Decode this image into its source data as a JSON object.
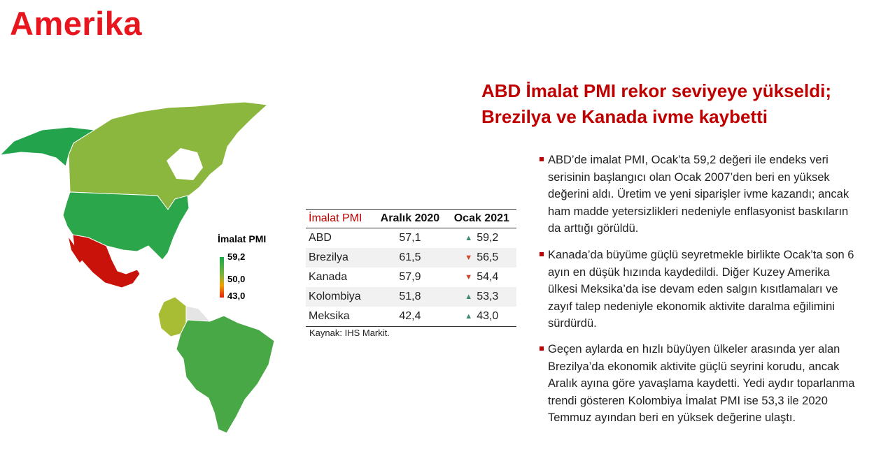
{
  "title": "Amerika",
  "headline": {
    "line1": "ABD İmalat PMI rekor seviyeye yükseldi;",
    "line2": "Brezilya ve Kanada ivme kaybetti"
  },
  "legend": {
    "title": "İmalat PMI",
    "max": "59,2",
    "mid": "50,0",
    "min": "43,0"
  },
  "map": {
    "canada_color": "#8cb73f",
    "alaska_color": "#22a34c",
    "usa_color": "#2ca64b",
    "mexico_color": "#c8120a",
    "colombia_color": "#a9bd34",
    "brazil_color": "#48a846"
  },
  "table": {
    "headers": [
      "İmalat PMI",
      "Aralık 2020",
      "Ocak 2021"
    ],
    "rows": [
      {
        "country": "ABD",
        "dec": "57,1",
        "jan": "59,2",
        "trend": "up"
      },
      {
        "country": "Brezilya",
        "dec": "61,5",
        "jan": "56,5",
        "trend": "down"
      },
      {
        "country": "Kanada",
        "dec": "57,9",
        "jan": "54,4",
        "trend": "down"
      },
      {
        "country": "Kolombiya",
        "dec": "51,8",
        "jan": "53,3",
        "trend": "up"
      },
      {
        "country": "Meksika",
        "dec": "42,4",
        "jan": "43,0",
        "trend": "up"
      }
    ],
    "source": "Kaynak: IHS Markit."
  },
  "bullets": [
    "ABD’de imalat PMI, Ocak’ta 59,2 değeri ile endeks veri serisinin başlangıcı olan Ocak 2007’den beri en yüksek değerini aldı. Üretim ve yeni siparişler ivme kazandı; ancak ham madde yetersizlikleri nedeniyle enflasyonist baskıların da arttığı görüldü.",
    "Kanada’da büyüme güçlü seyretmekle birlikte Ocak’ta son 6 ayın en düşük hızında kaydedildi. Diğer Kuzey Amerika ülkesi Meksika’da ise devam eden salgın kısıtlamaları ve zayıf talep nedeniyle ekonomik aktivite daralma eğilimini sürdürdü.",
    "Geçen aylarda en hızlı büyüyen ülkeler arasında yer alan Brezilya’da ekonomik aktivite güçlü seyrini korudu, ancak Aralık ayına göre yavaşlama kaydetti. Yedi aydır toparlanma trendi gösteren Kolombiya İmalat PMI ise 53,3 ile 2020 Temmuz ayından beri en yüksek değerine ulaştı."
  ]
}
